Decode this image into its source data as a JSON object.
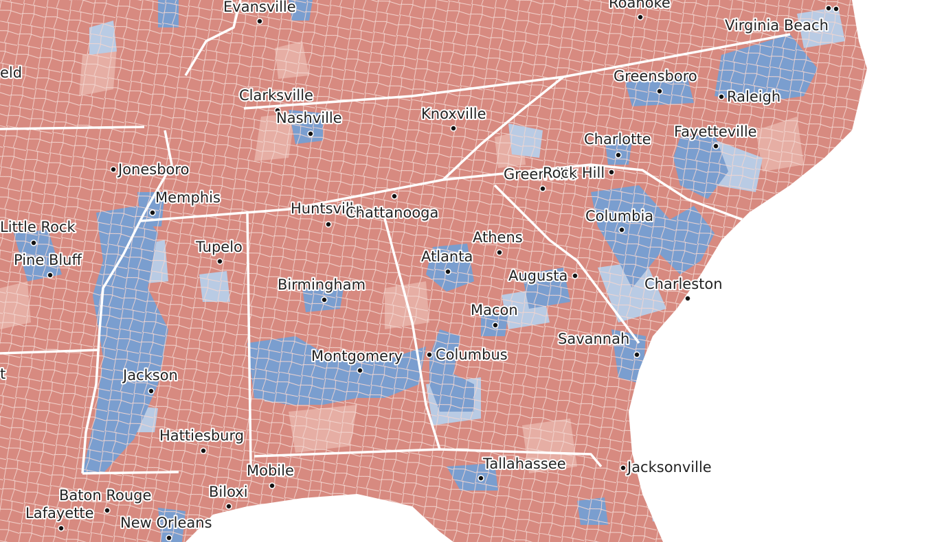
{
  "cities": [
    {
      "label": "Evansville"
    },
    {
      "label": "Roanoke"
    },
    {
      "label": "Virginia Beach"
    },
    {
      "label": "eld"
    },
    {
      "label": "Greensboro"
    },
    {
      "label": "Raleigh"
    },
    {
      "label": "Clarksville"
    },
    {
      "label": "Nashville"
    },
    {
      "label": "Knoxville"
    },
    {
      "label": "Charlotte"
    },
    {
      "label": "Fayetteville"
    },
    {
      "label": "Jonesboro"
    },
    {
      "label": "Greenville"
    },
    {
      "label": "Rock Hill"
    },
    {
      "label": "Memphis"
    },
    {
      "label": "Huntsville"
    },
    {
      "label": "Chattanooga"
    },
    {
      "label": "Little Rock"
    },
    {
      "label": "Tupelo"
    },
    {
      "label": "Columbia"
    },
    {
      "label": "Athens"
    },
    {
      "label": "Pine Bluff"
    },
    {
      "label": "Atlanta"
    },
    {
      "label": "Augusta"
    },
    {
      "label": "Charleston"
    },
    {
      "label": "Birmingham"
    },
    {
      "label": "Macon"
    },
    {
      "label": "Savannah"
    },
    {
      "label": "Montgomery"
    },
    {
      "label": "Columbus"
    },
    {
      "label": "Jackson"
    },
    {
      "label": "t"
    },
    {
      "label": "Hattiesburg"
    },
    {
      "label": "Tallahassee"
    },
    {
      "label": "Jacksonville"
    },
    {
      "label": "Mobile"
    },
    {
      "label": "Biloxi"
    },
    {
      "label": "Baton Rouge"
    },
    {
      "label": "Lafayette"
    },
    {
      "label": "New Orleans"
    }
  ]
}
